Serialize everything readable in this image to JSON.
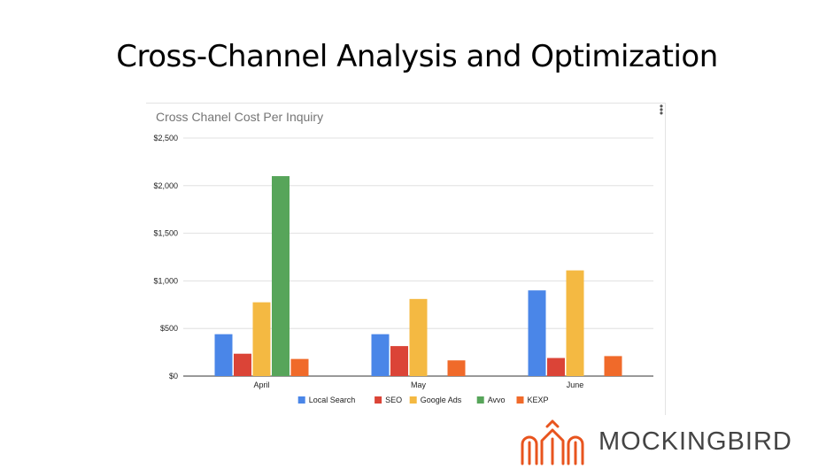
{
  "slide": {
    "title": "Cross-Channel Analysis and Optimization"
  },
  "brand": {
    "name": "MOCKINGBIRD",
    "color": "#E8541E"
  },
  "chart_data": {
    "type": "bar",
    "title": "Cross Chanel Cost Per Inquiry",
    "xlabel": "",
    "ylabel": "",
    "categories": [
      "April",
      "May",
      "June"
    ],
    "ylim": [
      0,
      2500
    ],
    "yticks": [
      0,
      500,
      1000,
      1500,
      2000,
      2500
    ],
    "ytick_labels": [
      "$0",
      "$500",
      "$1,000",
      "$1,500",
      "$2,000",
      "$2,500"
    ],
    "grid": true,
    "legend_position": "bottom",
    "series": [
      {
        "name": "Local Search",
        "color": "#4A86E8",
        "values": [
          440,
          440,
          900
        ]
      },
      {
        "name": "SEO",
        "color": "#DB4437",
        "values": [
          235,
          315,
          190
        ]
      },
      {
        "name": "Google Ads",
        "color": "#F4B942",
        "values": [
          775,
          810,
          1110
        ]
      },
      {
        "name": "Avvo",
        "color": "#57A55A",
        "values": [
          2100,
          null,
          null
        ]
      },
      {
        "name": "KEXP",
        "color": "#F06A2A",
        "values": [
          180,
          165,
          210
        ]
      }
    ]
  }
}
